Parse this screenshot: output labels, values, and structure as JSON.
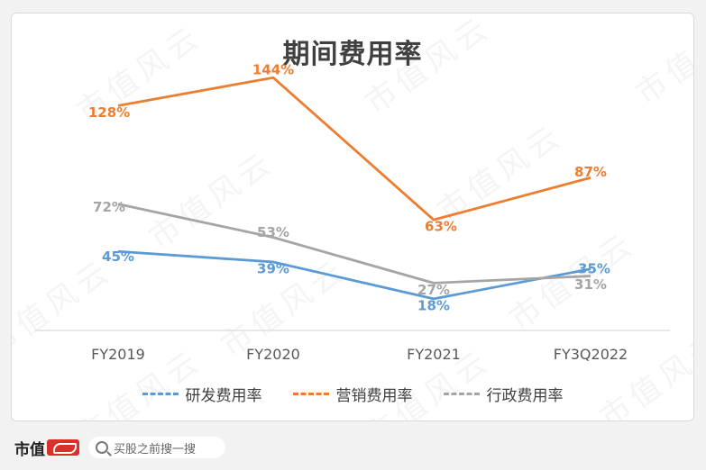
{
  "watermark_text": "市值风云",
  "chart_data": {
    "type": "line",
    "title": "期间费用率",
    "categories": [
      "FY2019",
      "FY2020",
      "FY2021",
      "FY3Q2022"
    ],
    "series": [
      {
        "name": "研发费用率",
        "values": [
          45,
          39,
          18,
          35
        ],
        "labels": [
          "45%",
          "39%",
          "18%",
          "35%"
        ],
        "color": "#5b9bd5"
      },
      {
        "name": "营销费用率",
        "values": [
          128,
          144,
          63,
          87
        ],
        "labels": [
          "128%",
          "144%",
          "63%",
          "87%"
        ],
        "color": "#ed7d31"
      },
      {
        "name": "行政费用率",
        "values": [
          72,
          53,
          27,
          31
        ],
        "labels": [
          "72%",
          "53%",
          "27%",
          "31%"
        ],
        "color": "#a5a5a5"
      }
    ],
    "ylim": [
      0,
      160
    ],
    "grid": false,
    "legend_position": "bottom",
    "line_style": "solid, legend dashed"
  },
  "footer": {
    "logo_text": "市值",
    "search_placeholder": "买股之前搜一搜"
  }
}
